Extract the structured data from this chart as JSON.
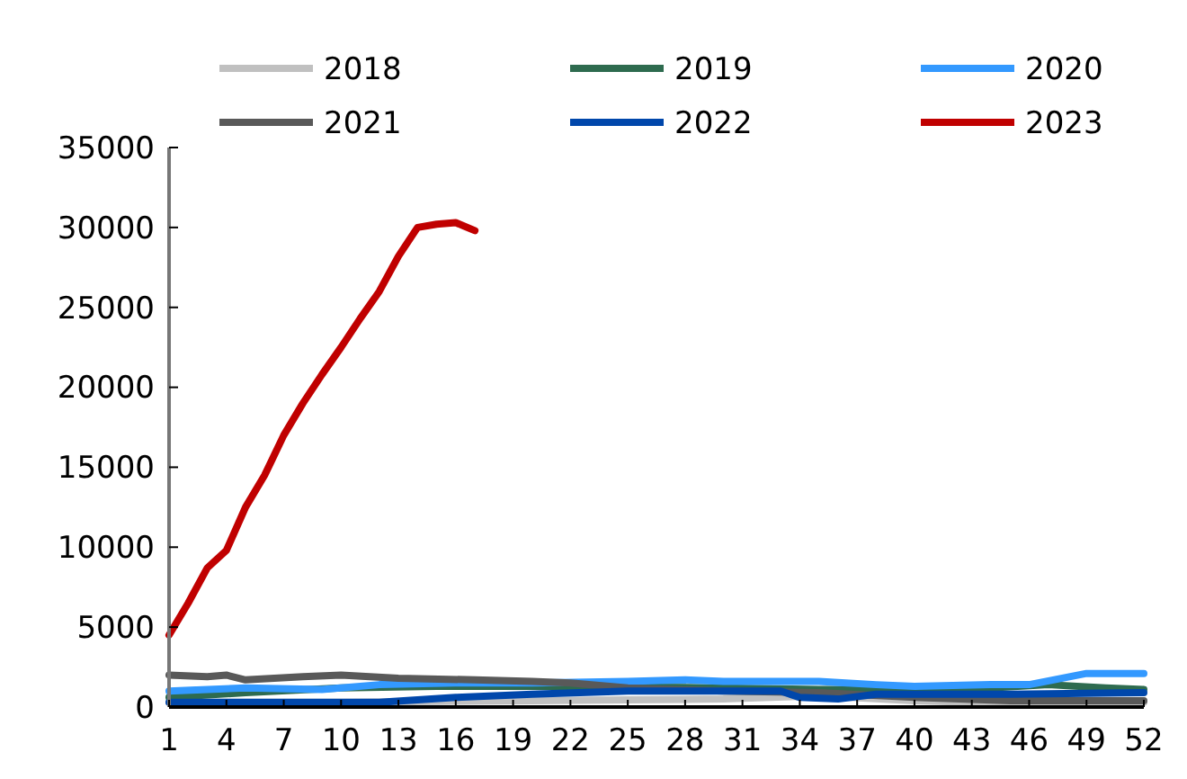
{
  "chart_data": {
    "type": "line",
    "xlim": [
      1,
      52
    ],
    "xticks": [
      1,
      4,
      7,
      10,
      13,
      16,
      19,
      22,
      25,
      28,
      31,
      34,
      37,
      40,
      43,
      46,
      49,
      52
    ],
    "ylim": [
      0,
      35000
    ],
    "yticks": [
      0,
      5000,
      10000,
      15000,
      20000,
      25000,
      30000,
      35000
    ],
    "legend": "top",
    "grid": false,
    "series": [
      {
        "name": "2018",
        "color": "#c0c0c0",
        "x": [
          1,
          5,
          10,
          15,
          20,
          25,
          30,
          35,
          40,
          43,
          46,
          49,
          52
        ],
        "values": [
          300,
          300,
          300,
          350,
          400,
          450,
          500,
          700,
          400,
          300,
          300,
          300,
          300
        ]
      },
      {
        "name": "2019",
        "color": "#2e6b4f",
        "x": [
          1,
          5,
          10,
          15,
          20,
          25,
          30,
          35,
          40,
          44,
          47,
          50,
          52
        ],
        "values": [
          600,
          900,
          1200,
          1300,
          1300,
          1250,
          1200,
          1100,
          1100,
          1200,
          1400,
          1200,
          1100
        ]
      },
      {
        "name": "2020",
        "color": "#3399ff",
        "x": [
          1,
          5,
          9,
          12,
          16,
          20,
          25,
          28,
          30,
          35,
          38,
          40,
          44,
          46,
          49,
          52
        ],
        "values": [
          1000,
          1200,
          1100,
          1400,
          1500,
          1500,
          1600,
          1700,
          1600,
          1600,
          1400,
          1300,
          1400,
          1400,
          2100,
          2100
        ]
      },
      {
        "name": "2021",
        "color": "#595959",
        "x": [
          1,
          3,
          4,
          5,
          8,
          10,
          13,
          17,
          20,
          22,
          25,
          30,
          35,
          40,
          45,
          52
        ],
        "values": [
          2000,
          1900,
          2000,
          1700,
          1900,
          2000,
          1800,
          1700,
          1600,
          1500,
          1200,
          1000,
          900,
          600,
          400,
          400
        ]
      },
      {
        "name": "2022",
        "color": "#0047ab",
        "x": [
          1,
          5,
          10,
          12,
          16,
          20,
          25,
          30,
          33,
          34,
          36,
          38,
          40,
          45,
          52
        ],
        "values": [
          300,
          300,
          300,
          300,
          600,
          800,
          1000,
          1000,
          1000,
          600,
          500,
          800,
          800,
          800,
          900
        ]
      },
      {
        "name": "2023",
        "color": "#c00000",
        "x": [
          1,
          2,
          3,
          4,
          5,
          6,
          7,
          8,
          9,
          10,
          11,
          12,
          13,
          14,
          15,
          16,
          17
        ],
        "values": [
          4500,
          6500,
          8700,
          9800,
          12500,
          14500,
          17000,
          19000,
          20800,
          22500,
          24300,
          26000,
          28200,
          30000,
          30200,
          30300,
          29800
        ]
      }
    ]
  }
}
